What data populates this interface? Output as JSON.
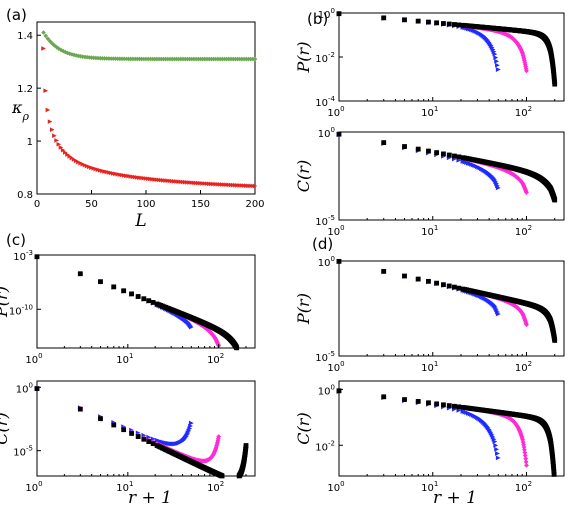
{
  "chart_data": [
    {
      "panel": "(a)",
      "type": "scatter",
      "xlabel": "L",
      "ylabel": "κ_ρ",
      "xlim": [
        0,
        200
      ],
      "ylim": [
        0.8,
        1.45
      ],
      "xticks": [
        0,
        50,
        100,
        150,
        200
      ],
      "yticks": [
        0.8,
        1,
        1.2,
        1.4
      ],
      "xtick_labels": [
        "0",
        "50",
        "100",
        "150",
        "200"
      ],
      "ytick_labels": [
        "0.8",
        "1",
        "1.2",
        "1.4"
      ],
      "series": [
        {
          "marker": "diamond",
          "color": "#6aa84f",
          "x_start": 6,
          "x_end": 200,
          "x_step": 2,
          "y_start": 1.41,
          "y_end": 1.31,
          "decay": 15
        },
        {
          "marker": "triangle-right",
          "color": "#e8231f",
          "x_start": 6,
          "x_end": 200,
          "x_step": 2,
          "y_start": 1.35,
          "y_end": 0.83,
          "shape": "power"
        }
      ]
    },
    {
      "panel": "(b)",
      "type": "scatter",
      "log": true,
      "subplots": [
        {
          "ylabel": "P(r)",
          "xlim_exp": [
            0,
            2.4
          ],
          "ylim_exp": [
            -4,
            0
          ],
          "ytick_exp": [
            0,
            -2,
            -4
          ],
          "xtick_exp": [
            0,
            1,
            2
          ],
          "series": [
            {
              "color": "#1f2bff",
              "marker": "triangle-right",
              "L": 50,
              "a": -0.03,
              "b": -0.38,
              "tail": 1.9,
              "tailw": 0.22
            },
            {
              "color": "#ff2bd6",
              "marker": "diamond",
              "L": 100,
              "a": -0.03,
              "b": -0.4,
              "tail": 1.7,
              "tailw": 0.2
            },
            {
              "color": "#000000",
              "marker": "square",
              "L": 200,
              "a": -0.03,
              "b": -0.4,
              "tail": 2.2,
              "tailw": 0.1
            }
          ]
        },
        {
          "ylabel": "C(r)",
          "xlim_exp": [
            0,
            2.4
          ],
          "ylim_exp": [
            -5,
            0
          ],
          "ytick_exp": [
            0,
            -5
          ],
          "xtick_exp": [
            0,
            1,
            2
          ],
          "series": [
            {
              "color": "#1f2bff",
              "marker": "triangle-right",
              "L": 50,
              "a": -0.1,
              "b": -1.05,
              "tail": 1.2,
              "tailw": 0.32
            },
            {
              "color": "#ff2bd6",
              "marker": "diamond",
              "L": 100,
              "a": -0.1,
              "b": -1.0,
              "tail": 1.2,
              "tailw": 0.3
            },
            {
              "color": "#000000",
              "marker": "square",
              "L": 200,
              "a": -0.1,
              "b": -1.0,
              "tail": 1.3,
              "tailw": 0.25
            }
          ]
        }
      ]
    },
    {
      "panel": "(c)",
      "type": "scatter",
      "log": true,
      "xlabel": "r+1",
      "subplots": [
        {
          "ylabel": "P(r)",
          "xlim_exp": [
            0,
            2.4
          ],
          "ylim_exp": [
            -15,
            -3
          ],
          "ytick_exp": [
            -3,
            -10
          ],
          "xtick_exp": [
            0,
            1,
            2
          ],
          "series": [
            {
              "color": "#1f2bff",
              "marker": "triangle-right",
              "L": 50,
              "a": -3.2,
              "b": -4.6,
              "tail": 1.2,
              "tailw": 0.3
            },
            {
              "color": "#ff2bd6",
              "marker": "diamond",
              "L": 100,
              "a": -3.2,
              "b": -4.6,
              "tail": 2.2,
              "tailw": 0.25
            },
            {
              "color": "#000000",
              "marker": "square",
              "L": 200,
              "a": -3.2,
              "b": -4.6,
              "tail": 5.5,
              "tailw": 0.18
            }
          ]
        },
        {
          "ylabel": "C(r)",
          "xlim_exp": [
            0,
            2.4
          ],
          "ylim_exp": [
            -7,
            0.5
          ],
          "ytick_exp": [
            0,
            -5
          ],
          "xtick_exp": [
            0,
            1,
            2
          ],
          "series": [
            {
              "color": "#1f2bff",
              "marker": "triangle-right",
              "L": 50,
              "a": -0.1,
              "b": -3.2,
              "tail": -3.0,
              "tailw": 0.2
            },
            {
              "color": "#ff2bd6",
              "marker": "diamond",
              "L": 100,
              "a": -0.1,
              "b": -3.3,
              "tail": -3.0,
              "tailw": 0.15
            },
            {
              "color": "#000000",
              "marker": "square",
              "L": 200,
              "a": -0.1,
              "b": -3.4,
              "tail": -3.5,
              "tailw": 0.1
            }
          ]
        }
      ]
    },
    {
      "panel": "(d)",
      "type": "scatter",
      "log": true,
      "xlabel": "r+1",
      "subplots": [
        {
          "ylabel": "P(r)",
          "xlim_exp": [
            0,
            2.4
          ],
          "ylim_exp": [
            -5,
            0
          ],
          "ytick_exp": [
            0,
            -5
          ],
          "xtick_exp": [
            0,
            1,
            2
          ],
          "series": [
            {
              "color": "#1f2bff",
              "marker": "triangle-right",
              "L": 50,
              "a": -0.02,
              "b": -1.1,
              "tail": 0.8,
              "tailw": 0.25
            },
            {
              "color": "#ff2bd6",
              "marker": "diamond",
              "L": 100,
              "a": -0.02,
              "b": -1.1,
              "tail": 1.0,
              "tailw": 0.2
            },
            {
              "color": "#000000",
              "marker": "square",
              "L": 200,
              "a": -0.02,
              "b": -1.1,
              "tail": 1.5,
              "tailw": 0.12
            }
          ]
        },
        {
          "ylabel": "C(r)",
          "xlim_exp": [
            0,
            2.4
          ],
          "ylim_exp": [
            -3.1,
            0.3
          ],
          "ytick_exp": [
            0,
            -2
          ],
          "xtick_exp": [
            0,
            1,
            2
          ],
          "series": [
            {
              "color": "#1f2bff",
              "marker": "triangle-right",
              "L": 50,
              "a": -0.05,
              "b": -0.45,
              "tail": 1.6,
              "tailw": 0.25
            },
            {
              "color": "#ff2bd6",
              "marker": "diamond",
              "L": 100,
              "a": -0.05,
              "b": -0.45,
              "tail": 1.7,
              "tailw": 0.15
            },
            {
              "color": "#000000",
              "marker": "square",
              "L": 200,
              "a": -0.05,
              "b": -0.45,
              "tail": 2.2,
              "tailw": 0.1
            }
          ]
        }
      ]
    }
  ]
}
